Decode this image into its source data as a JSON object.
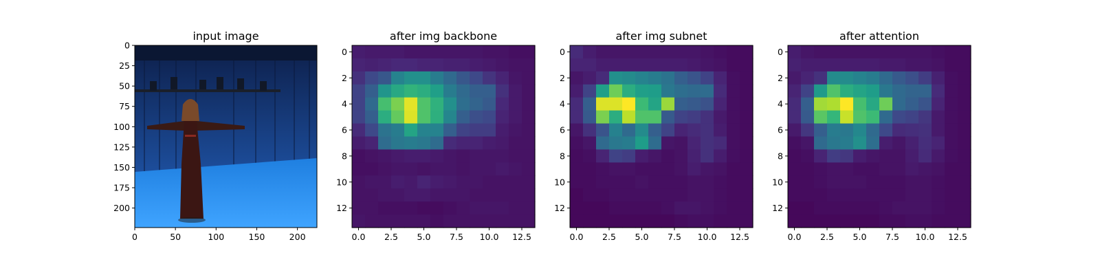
{
  "chart_data": [
    {
      "type": "image",
      "title": "input image",
      "xlim": [
        0,
        224
      ],
      "ylim": [
        224,
        0
      ],
      "x_ticks": [
        0,
        50,
        100,
        150,
        200
      ],
      "y_ticks": [
        0,
        25,
        50,
        75,
        100,
        125,
        150,
        175,
        200
      ]
    },
    {
      "type": "heatmap",
      "title": "after img backbone",
      "colormap": "viridis",
      "x_ticks": [
        "0.0",
        "2.5",
        "5.0",
        "7.5",
        "10.0",
        "12.5"
      ],
      "y_ticks": [
        "0",
        "2",
        "4",
        "6",
        "8",
        "10",
        "12"
      ],
      "values": [
        [
          0.08,
          0.07,
          0.07,
          0.07,
          0.06,
          0.06,
          0.06,
          0.06,
          0.06,
          0.06,
          0.05,
          0.05,
          0.04,
          0.04
        ],
        [
          0.1,
          0.09,
          0.1,
          0.11,
          0.11,
          0.1,
          0.1,
          0.09,
          0.09,
          0.08,
          0.07,
          0.06,
          0.05,
          0.05
        ],
        [
          0.14,
          0.22,
          0.27,
          0.45,
          0.5,
          0.5,
          0.42,
          0.34,
          0.27,
          0.22,
          0.15,
          0.1,
          0.06,
          0.05
        ],
        [
          0.2,
          0.3,
          0.52,
          0.6,
          0.65,
          0.62,
          0.56,
          0.42,
          0.34,
          0.3,
          0.3,
          0.14,
          0.07,
          0.05
        ],
        [
          0.2,
          0.34,
          0.7,
          0.8,
          0.96,
          0.72,
          0.64,
          0.5,
          0.36,
          0.32,
          0.28,
          0.11,
          0.07,
          0.05
        ],
        [
          0.2,
          0.3,
          0.62,
          0.76,
          0.95,
          0.72,
          0.63,
          0.46,
          0.3,
          0.24,
          0.22,
          0.1,
          0.07,
          0.05
        ],
        [
          0.12,
          0.22,
          0.38,
          0.42,
          0.58,
          0.45,
          0.45,
          0.3,
          0.2,
          0.18,
          0.18,
          0.08,
          0.06,
          0.05
        ],
        [
          0.08,
          0.1,
          0.35,
          0.4,
          0.42,
          0.4,
          0.35,
          0.12,
          0.1,
          0.1,
          0.08,
          0.07,
          0.05,
          0.05
        ],
        [
          0.04,
          0.05,
          0.06,
          0.07,
          0.08,
          0.08,
          0.07,
          0.06,
          0.05,
          0.06,
          0.06,
          0.06,
          0.05,
          0.05
        ],
        [
          0.04,
          0.04,
          0.05,
          0.06,
          0.06,
          0.05,
          0.06,
          0.06,
          0.05,
          0.06,
          0.06,
          0.07,
          0.06,
          0.05
        ],
        [
          0.05,
          0.06,
          0.06,
          0.08,
          0.07,
          0.1,
          0.08,
          0.07,
          0.06,
          0.06,
          0.05,
          0.05,
          0.05,
          0.05
        ],
        [
          0.05,
          0.05,
          0.06,
          0.06,
          0.07,
          0.07,
          0.06,
          0.06,
          0.06,
          0.05,
          0.05,
          0.05,
          0.05,
          0.05
        ],
        [
          0.05,
          0.05,
          0.04,
          0.04,
          0.04,
          0.03,
          0.03,
          0.04,
          0.05,
          0.06,
          0.06,
          0.06,
          0.05,
          0.05
        ],
        [
          0.06,
          0.05,
          0.05,
          0.05,
          0.05,
          0.05,
          0.04,
          0.05,
          0.05,
          0.05,
          0.05,
          0.05,
          0.05,
          0.05
        ]
      ]
    },
    {
      "type": "heatmap",
      "title": "after img subnet",
      "colormap": "viridis",
      "x_ticks": [
        "0.0",
        "2.5",
        "5.0",
        "7.5",
        "10.0",
        "12.5"
      ],
      "y_ticks": [
        "0",
        "2",
        "4",
        "6",
        "8",
        "10",
        "12"
      ],
      "values": [
        [
          0.12,
          0.08,
          0.06,
          0.06,
          0.06,
          0.06,
          0.06,
          0.06,
          0.06,
          0.06,
          0.05,
          0.04,
          0.03,
          0.03
        ],
        [
          0.1,
          0.1,
          0.08,
          0.08,
          0.08,
          0.08,
          0.08,
          0.08,
          0.08,
          0.07,
          0.06,
          0.05,
          0.03,
          0.03
        ],
        [
          0.06,
          0.08,
          0.12,
          0.5,
          0.48,
          0.45,
          0.42,
          0.38,
          0.3,
          0.26,
          0.2,
          0.1,
          0.04,
          0.03
        ],
        [
          0.08,
          0.2,
          0.56,
          0.78,
          0.62,
          0.56,
          0.55,
          0.4,
          0.36,
          0.34,
          0.35,
          0.12,
          0.04,
          0.03
        ],
        [
          0.12,
          0.3,
          0.95,
          0.95,
          1.0,
          0.68,
          0.58,
          0.85,
          0.3,
          0.28,
          0.25,
          0.1,
          0.04,
          0.03
        ],
        [
          0.12,
          0.28,
          0.8,
          0.62,
          0.9,
          0.72,
          0.72,
          0.28,
          0.2,
          0.18,
          0.14,
          0.07,
          0.04,
          0.03
        ],
        [
          0.06,
          0.14,
          0.26,
          0.44,
          0.34,
          0.48,
          0.3,
          0.2,
          0.1,
          0.12,
          0.14,
          0.08,
          0.04,
          0.03
        ],
        [
          0.04,
          0.06,
          0.34,
          0.4,
          0.42,
          0.55,
          0.35,
          0.06,
          0.05,
          0.1,
          0.14,
          0.12,
          0.04,
          0.03
        ],
        [
          0.03,
          0.04,
          0.1,
          0.2,
          0.18,
          0.08,
          0.06,
          0.04,
          0.05,
          0.09,
          0.14,
          0.08,
          0.04,
          0.03
        ],
        [
          0.03,
          0.03,
          0.04,
          0.05,
          0.05,
          0.04,
          0.04,
          0.04,
          0.05,
          0.08,
          0.06,
          0.05,
          0.03,
          0.03
        ],
        [
          0.03,
          0.03,
          0.04,
          0.04,
          0.04,
          0.05,
          0.04,
          0.04,
          0.04,
          0.05,
          0.05,
          0.04,
          0.03,
          0.03
        ],
        [
          0.02,
          0.03,
          0.03,
          0.04,
          0.04,
          0.04,
          0.04,
          0.04,
          0.04,
          0.05,
          0.05,
          0.04,
          0.03,
          0.03
        ],
        [
          0.02,
          0.02,
          0.02,
          0.03,
          0.03,
          0.03,
          0.03,
          0.04,
          0.06,
          0.06,
          0.05,
          0.04,
          0.03,
          0.03
        ],
        [
          0.02,
          0.02,
          0.02,
          0.02,
          0.02,
          0.02,
          0.02,
          0.02,
          0.03,
          0.04,
          0.04,
          0.03,
          0.03,
          0.03
        ]
      ]
    },
    {
      "type": "heatmap",
      "title": "after attention",
      "colormap": "viridis",
      "x_ticks": [
        "0.0",
        "2.5",
        "5.0",
        "7.5",
        "10.0",
        "12.5"
      ],
      "y_ticks": [
        "0",
        "2",
        "4",
        "6",
        "8",
        "10",
        "12"
      ],
      "values": [
        [
          0.08,
          0.06,
          0.05,
          0.05,
          0.05,
          0.05,
          0.05,
          0.05,
          0.05,
          0.05,
          0.05,
          0.04,
          0.03,
          0.03
        ],
        [
          0.09,
          0.08,
          0.08,
          0.08,
          0.08,
          0.08,
          0.08,
          0.07,
          0.07,
          0.06,
          0.06,
          0.05,
          0.03,
          0.03
        ],
        [
          0.07,
          0.1,
          0.14,
          0.48,
          0.48,
          0.45,
          0.42,
          0.34,
          0.28,
          0.24,
          0.18,
          0.09,
          0.04,
          0.03
        ],
        [
          0.1,
          0.2,
          0.54,
          0.72,
          0.62,
          0.58,
          0.55,
          0.4,
          0.34,
          0.32,
          0.32,
          0.12,
          0.04,
          0.03
        ],
        [
          0.12,
          0.3,
          0.86,
          0.88,
          1.0,
          0.7,
          0.6,
          0.78,
          0.34,
          0.3,
          0.26,
          0.1,
          0.04,
          0.03
        ],
        [
          0.12,
          0.28,
          0.74,
          0.66,
          0.92,
          0.72,
          0.68,
          0.34,
          0.22,
          0.2,
          0.16,
          0.07,
          0.04,
          0.03
        ],
        [
          0.07,
          0.16,
          0.3,
          0.42,
          0.4,
          0.47,
          0.34,
          0.22,
          0.12,
          0.13,
          0.14,
          0.07,
          0.04,
          0.03
        ],
        [
          0.04,
          0.06,
          0.34,
          0.4,
          0.42,
          0.5,
          0.36,
          0.08,
          0.06,
          0.09,
          0.13,
          0.1,
          0.04,
          0.03
        ],
        [
          0.03,
          0.04,
          0.1,
          0.18,
          0.16,
          0.08,
          0.06,
          0.05,
          0.05,
          0.08,
          0.12,
          0.07,
          0.04,
          0.03
        ],
        [
          0.03,
          0.03,
          0.04,
          0.05,
          0.05,
          0.04,
          0.04,
          0.05,
          0.05,
          0.07,
          0.06,
          0.05,
          0.03,
          0.03
        ],
        [
          0.03,
          0.03,
          0.04,
          0.05,
          0.05,
          0.05,
          0.04,
          0.04,
          0.04,
          0.05,
          0.05,
          0.04,
          0.03,
          0.03
        ],
        [
          0.03,
          0.03,
          0.03,
          0.04,
          0.04,
          0.04,
          0.04,
          0.04,
          0.04,
          0.05,
          0.05,
          0.04,
          0.03,
          0.03
        ],
        [
          0.02,
          0.02,
          0.03,
          0.03,
          0.03,
          0.03,
          0.03,
          0.04,
          0.05,
          0.05,
          0.05,
          0.04,
          0.03,
          0.03
        ],
        [
          0.02,
          0.02,
          0.02,
          0.02,
          0.02,
          0.02,
          0.02,
          0.03,
          0.03,
          0.04,
          0.04,
          0.03,
          0.03,
          0.03
        ]
      ]
    }
  ]
}
